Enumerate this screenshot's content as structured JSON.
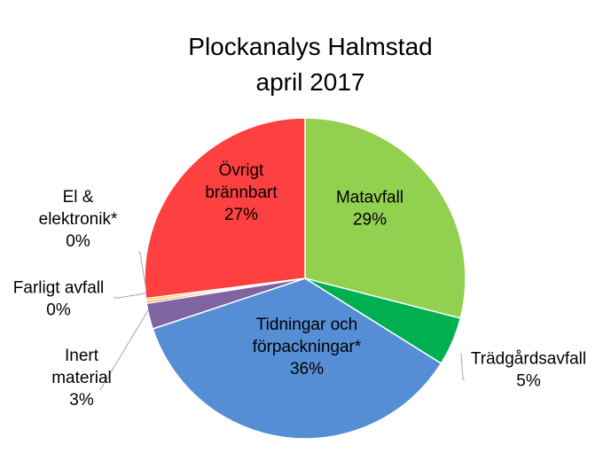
{
  "chart_data": {
    "type": "pie",
    "title_lines": [
      "Plockanalys Halmstad",
      "april 2017"
    ],
    "slices": [
      {
        "label_lines": [
          "Matavfall"
        ],
        "pct_text": "29%",
        "value": 29.0,
        "color": "#92d050"
      },
      {
        "label_lines": [
          "Trädgårdsavfall"
        ],
        "pct_text": "5%",
        "value": 4.9,
        "color": "#00b050"
      },
      {
        "label_lines": [
          "Tidningar och",
          "förpackningar*"
        ],
        "pct_text": "36%",
        "value": 36.0,
        "color": "#558ed5"
      },
      {
        "label_lines": [
          "Inert",
          "material"
        ],
        "pct_text": "3%",
        "value": 2.6,
        "color": "#8064a2"
      },
      {
        "label_lines": [
          "Farligt avfall"
        ],
        "pct_text": "0%",
        "value": 0.25,
        "color": "#f79646"
      },
      {
        "label_lines": [
          "El &",
          "elektronik*"
        ],
        "pct_text": "0%",
        "value": 0.25,
        "color": "#ffc000"
      },
      {
        "label_lines": [
          "Övrigt",
          "brännbart"
        ],
        "pct_text": "27%",
        "value": 27.0,
        "color": "#ff4040"
      }
    ]
  }
}
